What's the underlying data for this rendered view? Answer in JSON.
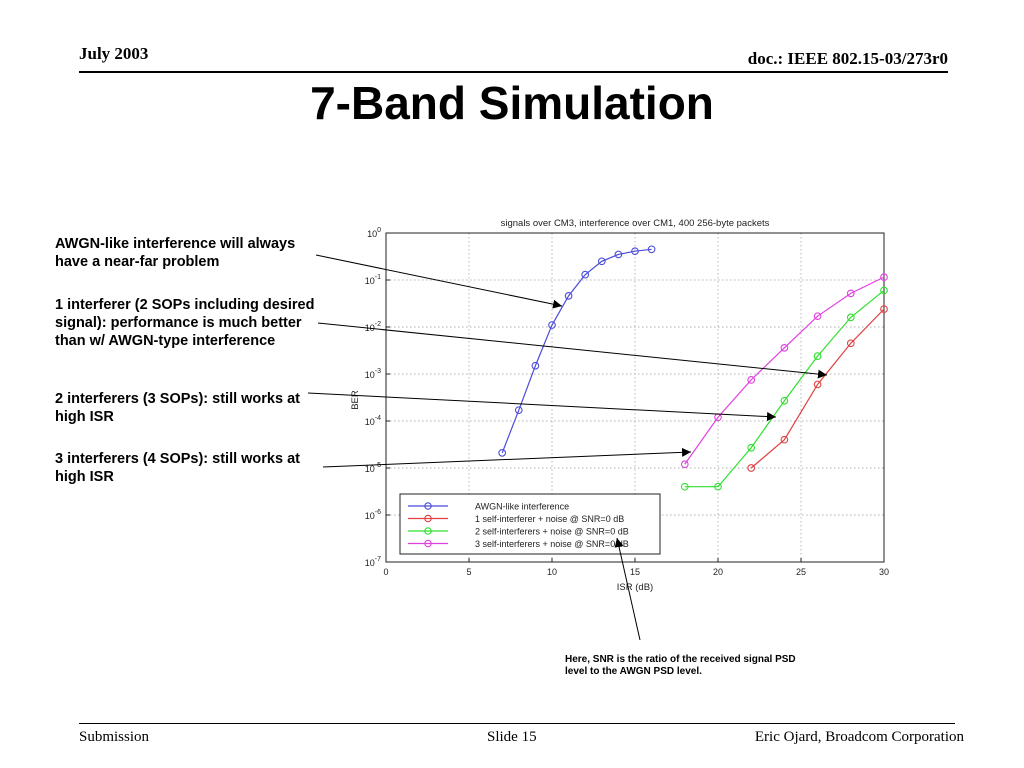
{
  "header": {
    "date": "July 2003",
    "doc": "doc.: IEEE 802.15-03/273r0"
  },
  "slide_title": "7-Band Simulation",
  "annotations": [
    "AWGN-like interference will always have a near-far problem",
    "1 interferer (2 SOPs including desired signal): performance is much better than w/ AWGN-type interference",
    "2 interferers (3 SOPs): still works at high ISR",
    "3 interferers (4 SOPs): still works at high ISR"
  ],
  "snr_note": "Here, SNR is the ratio of the received signal PSD level to the AWGN PSD level.",
  "footer": {
    "left": "Submission",
    "center": "Slide 15",
    "right": "Eric Ojard, Broadcom Corporation"
  },
  "chart_data": {
    "type": "line",
    "title": "signals over CM3, interference over CM1, 400 256-byte packets",
    "xlabel": "ISR (dB)",
    "ylabel": "BER",
    "xlim": [
      0,
      30
    ],
    "ylim": [
      1e-07,
      1
    ],
    "yscale": "log",
    "xticks": [
      0,
      5,
      10,
      15,
      20,
      25,
      30
    ],
    "yticks": [
      {
        "value": 1e-07,
        "base": "10",
        "exp": "-7"
      },
      {
        "value": 1e-06,
        "base": "10",
        "exp": "-6"
      },
      {
        "value": 1e-05,
        "base": "10",
        "exp": "-5"
      },
      {
        "value": 0.0001,
        "base": "10",
        "exp": "-4"
      },
      {
        "value": 0.001,
        "base": "10",
        "exp": "-3"
      },
      {
        "value": 0.01,
        "base": "10",
        "exp": "-2"
      },
      {
        "value": 0.1,
        "base": "10",
        "exp": "-1"
      },
      {
        "value": 1,
        "base": "10",
        "exp": "0"
      }
    ],
    "grid": true,
    "legend_position": "bottom-center",
    "series": [
      {
        "name": "AWGN-like interference",
        "color": "#4b4bdc",
        "x": [
          7,
          8,
          9,
          10,
          11,
          12,
          13,
          14,
          15,
          16
        ],
        "y": [
          2.1e-05,
          0.00017,
          0.0015,
          0.011,
          0.046,
          0.13,
          0.25,
          0.35,
          0.41,
          0.45
        ]
      },
      {
        "name": "1 self-interferer + noise @ SNR=0 dB",
        "color": "#e04040",
        "x": [
          22,
          24,
          26,
          28,
          30
        ],
        "y": [
          1e-05,
          4e-05,
          0.0006,
          0.0045,
          0.024
        ]
      },
      {
        "name": "2 self-interferers + noise @ SNR=0 dB",
        "color": "#2ee02e",
        "x": [
          18,
          20,
          22,
          24,
          26,
          28,
          30
        ],
        "y": [
          4e-06,
          4e-06,
          2.7e-05,
          0.00027,
          0.0024,
          0.016,
          0.06
        ]
      },
      {
        "name": "3 self-interferers + noise @ SNR=0 dB",
        "color": "#e040e0",
        "x": [
          18,
          20,
          22,
          24,
          26,
          28,
          30
        ],
        "y": [
          1.2e-05,
          0.00012,
          0.00075,
          0.0036,
          0.017,
          0.052,
          0.115
        ]
      }
    ]
  }
}
